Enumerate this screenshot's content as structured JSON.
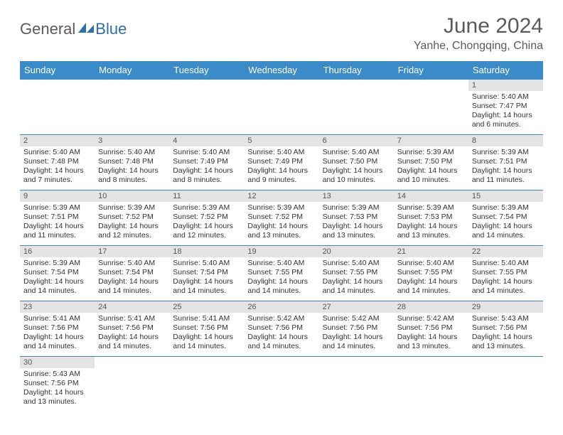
{
  "logo": {
    "text1": "General",
    "text2": "Blue"
  },
  "title": "June 2024",
  "location": "Yanhe, Chongqing, China",
  "colors": {
    "header_bg": "#3b8bc9",
    "header_fg": "#ffffff",
    "daynum_bg": "#e4e4e4",
    "rule": "#3b8bc9",
    "text": "#333333",
    "title_fg": "#5a5a5a"
  },
  "weekdays": [
    "Sunday",
    "Monday",
    "Tuesday",
    "Wednesday",
    "Thursday",
    "Friday",
    "Saturday"
  ],
  "weeks": [
    [
      null,
      null,
      null,
      null,
      null,
      null,
      {
        "n": "1",
        "sunrise": "Sunrise: 5:40 AM",
        "sunset": "Sunset: 7:47 PM",
        "daylight": "Daylight: 14 hours and 6 minutes."
      }
    ],
    [
      {
        "n": "2",
        "sunrise": "Sunrise: 5:40 AM",
        "sunset": "Sunset: 7:48 PM",
        "daylight": "Daylight: 14 hours and 7 minutes."
      },
      {
        "n": "3",
        "sunrise": "Sunrise: 5:40 AM",
        "sunset": "Sunset: 7:48 PM",
        "daylight": "Daylight: 14 hours and 8 minutes."
      },
      {
        "n": "4",
        "sunrise": "Sunrise: 5:40 AM",
        "sunset": "Sunset: 7:49 PM",
        "daylight": "Daylight: 14 hours and 8 minutes."
      },
      {
        "n": "5",
        "sunrise": "Sunrise: 5:40 AM",
        "sunset": "Sunset: 7:49 PM",
        "daylight": "Daylight: 14 hours and 9 minutes."
      },
      {
        "n": "6",
        "sunrise": "Sunrise: 5:40 AM",
        "sunset": "Sunset: 7:50 PM",
        "daylight": "Daylight: 14 hours and 10 minutes."
      },
      {
        "n": "7",
        "sunrise": "Sunrise: 5:39 AM",
        "sunset": "Sunset: 7:50 PM",
        "daylight": "Daylight: 14 hours and 10 minutes."
      },
      {
        "n": "8",
        "sunrise": "Sunrise: 5:39 AM",
        "sunset": "Sunset: 7:51 PM",
        "daylight": "Daylight: 14 hours and 11 minutes."
      }
    ],
    [
      {
        "n": "9",
        "sunrise": "Sunrise: 5:39 AM",
        "sunset": "Sunset: 7:51 PM",
        "daylight": "Daylight: 14 hours and 11 minutes."
      },
      {
        "n": "10",
        "sunrise": "Sunrise: 5:39 AM",
        "sunset": "Sunset: 7:52 PM",
        "daylight": "Daylight: 14 hours and 12 minutes."
      },
      {
        "n": "11",
        "sunrise": "Sunrise: 5:39 AM",
        "sunset": "Sunset: 7:52 PM",
        "daylight": "Daylight: 14 hours and 12 minutes."
      },
      {
        "n": "12",
        "sunrise": "Sunrise: 5:39 AM",
        "sunset": "Sunset: 7:52 PM",
        "daylight": "Daylight: 14 hours and 13 minutes."
      },
      {
        "n": "13",
        "sunrise": "Sunrise: 5:39 AM",
        "sunset": "Sunset: 7:53 PM",
        "daylight": "Daylight: 14 hours and 13 minutes."
      },
      {
        "n": "14",
        "sunrise": "Sunrise: 5:39 AM",
        "sunset": "Sunset: 7:53 PM",
        "daylight": "Daylight: 14 hours and 13 minutes."
      },
      {
        "n": "15",
        "sunrise": "Sunrise: 5:39 AM",
        "sunset": "Sunset: 7:54 PM",
        "daylight": "Daylight: 14 hours and 14 minutes."
      }
    ],
    [
      {
        "n": "16",
        "sunrise": "Sunrise: 5:39 AM",
        "sunset": "Sunset: 7:54 PM",
        "daylight": "Daylight: 14 hours and 14 minutes."
      },
      {
        "n": "17",
        "sunrise": "Sunrise: 5:40 AM",
        "sunset": "Sunset: 7:54 PM",
        "daylight": "Daylight: 14 hours and 14 minutes."
      },
      {
        "n": "18",
        "sunrise": "Sunrise: 5:40 AM",
        "sunset": "Sunset: 7:54 PM",
        "daylight": "Daylight: 14 hours and 14 minutes."
      },
      {
        "n": "19",
        "sunrise": "Sunrise: 5:40 AM",
        "sunset": "Sunset: 7:55 PM",
        "daylight": "Daylight: 14 hours and 14 minutes."
      },
      {
        "n": "20",
        "sunrise": "Sunrise: 5:40 AM",
        "sunset": "Sunset: 7:55 PM",
        "daylight": "Daylight: 14 hours and 14 minutes."
      },
      {
        "n": "21",
        "sunrise": "Sunrise: 5:40 AM",
        "sunset": "Sunset: 7:55 PM",
        "daylight": "Daylight: 14 hours and 14 minutes."
      },
      {
        "n": "22",
        "sunrise": "Sunrise: 5:40 AM",
        "sunset": "Sunset: 7:55 PM",
        "daylight": "Daylight: 14 hours and 14 minutes."
      }
    ],
    [
      {
        "n": "23",
        "sunrise": "Sunrise: 5:41 AM",
        "sunset": "Sunset: 7:56 PM",
        "daylight": "Daylight: 14 hours and 14 minutes."
      },
      {
        "n": "24",
        "sunrise": "Sunrise: 5:41 AM",
        "sunset": "Sunset: 7:56 PM",
        "daylight": "Daylight: 14 hours and 14 minutes."
      },
      {
        "n": "25",
        "sunrise": "Sunrise: 5:41 AM",
        "sunset": "Sunset: 7:56 PM",
        "daylight": "Daylight: 14 hours and 14 minutes."
      },
      {
        "n": "26",
        "sunrise": "Sunrise: 5:42 AM",
        "sunset": "Sunset: 7:56 PM",
        "daylight": "Daylight: 14 hours and 14 minutes."
      },
      {
        "n": "27",
        "sunrise": "Sunrise: 5:42 AM",
        "sunset": "Sunset: 7:56 PM",
        "daylight": "Daylight: 14 hours and 14 minutes."
      },
      {
        "n": "28",
        "sunrise": "Sunrise: 5:42 AM",
        "sunset": "Sunset: 7:56 PM",
        "daylight": "Daylight: 14 hours and 13 minutes."
      },
      {
        "n": "29",
        "sunrise": "Sunrise: 5:43 AM",
        "sunset": "Sunset: 7:56 PM",
        "daylight": "Daylight: 14 hours and 13 minutes."
      }
    ],
    [
      {
        "n": "30",
        "sunrise": "Sunrise: 5:43 AM",
        "sunset": "Sunset: 7:56 PM",
        "daylight": "Daylight: 14 hours and 13 minutes."
      },
      null,
      null,
      null,
      null,
      null,
      null
    ]
  ]
}
